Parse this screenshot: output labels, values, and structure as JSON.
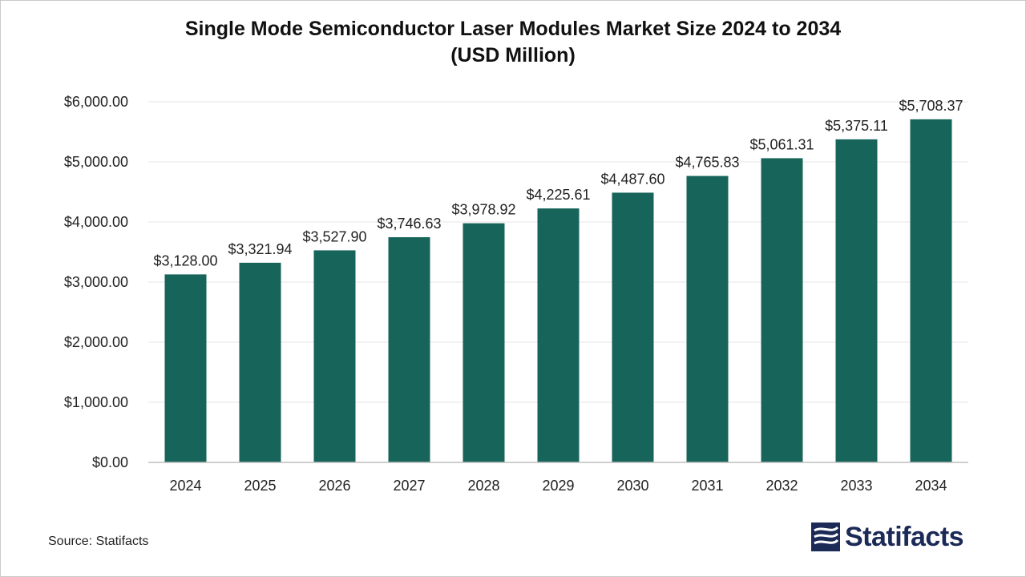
{
  "chart_data": {
    "type": "bar",
    "title": "Single Mode Semiconductor Laser Modules Market Size 2024 to 2034",
    "subtitle": "(USD Million)",
    "xlabel": "",
    "ylabel": "",
    "categories": [
      "2024",
      "2025",
      "2026",
      "2027",
      "2028",
      "2029",
      "2030",
      "2031",
      "2032",
      "2033",
      "2034"
    ],
    "values": [
      3128.0,
      3321.94,
      3527.9,
      3746.63,
      3978.92,
      4225.61,
      4487.6,
      4765.83,
      5061.31,
      5375.11,
      5708.37
    ],
    "data_labels": [
      "$3,128.00",
      "$3,321.94",
      "$3,527.90",
      "$3,746.63",
      "$3,978.92",
      "$4,225.61",
      "$4,487.60",
      "$4,765.83",
      "$5,061.31",
      "$5,375.11",
      "$5,708.37"
    ],
    "ylim": [
      0,
      6000
    ],
    "yticks": [
      0,
      1000,
      2000,
      3000,
      4000,
      5000,
      6000
    ],
    "ytick_labels": [
      "$0.00",
      "$1,000.00",
      "$2,000.00",
      "$3,000.00",
      "$4,000.00",
      "$5,000.00",
      "$6,000.00"
    ],
    "grid": true,
    "bar_color": "#17645a"
  },
  "footer": {
    "source": "Source: Statifacts",
    "brand": "Statifacts",
    "brand_icon": "statifacts-logo-icon"
  }
}
